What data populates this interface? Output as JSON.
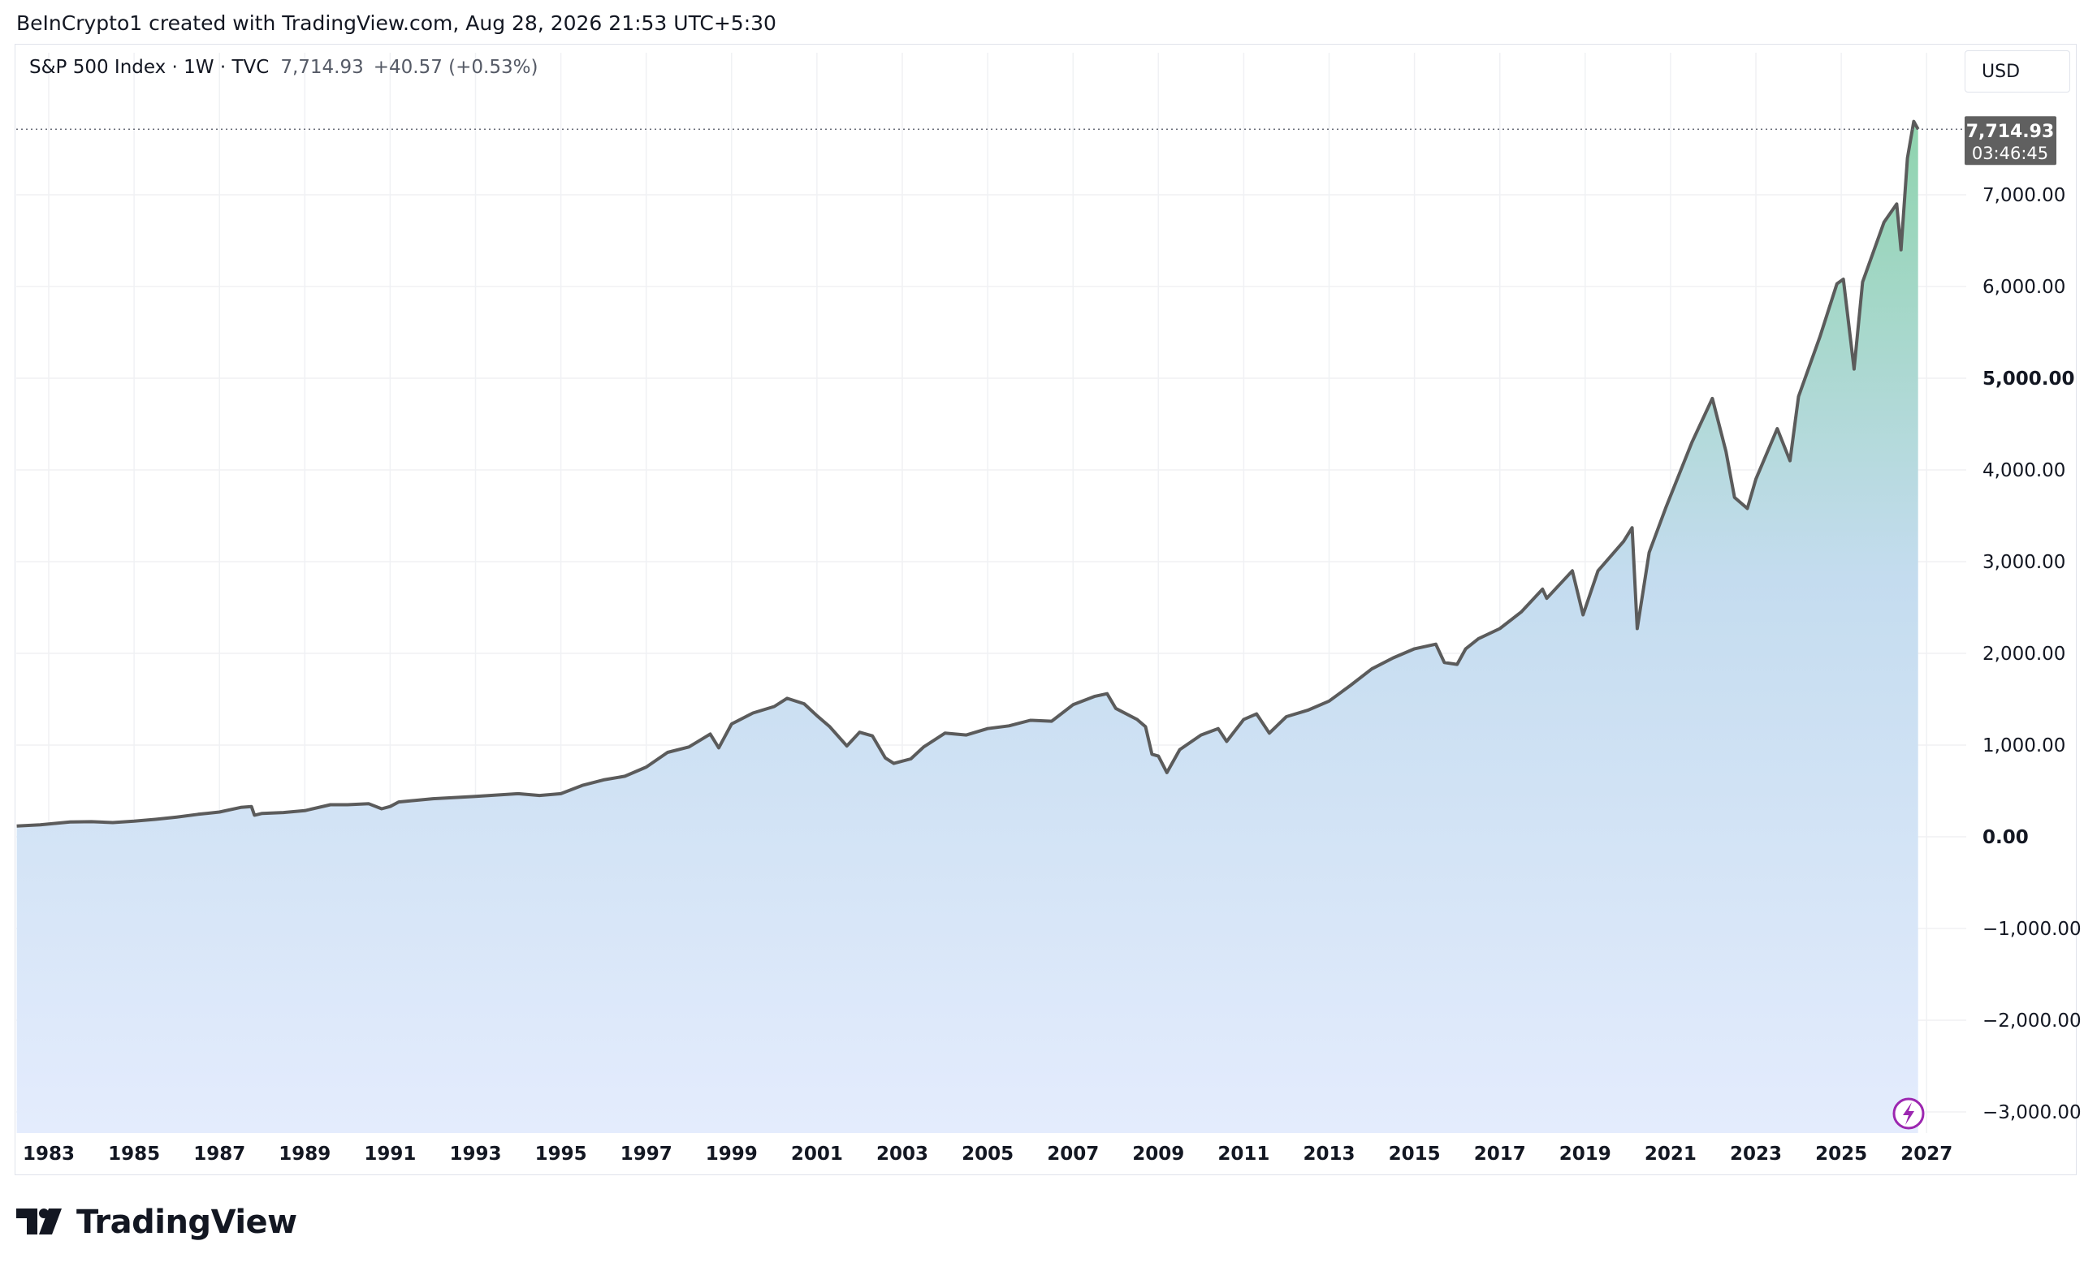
{
  "attribution": "BeInCrypto1 created with TradingView.com, Aug 28, 2026 21:53 UTC+5:30",
  "header": {
    "symbol": "S&P 500 Index · 1W · TVC",
    "price": "7,714.93",
    "change": "+40.57 (+0.53%)",
    "currency": "USD"
  },
  "price_tag": {
    "price": "7,714.93",
    "countdown": "03:46:45"
  },
  "brand": {
    "name": "TradingView"
  },
  "colors": {
    "line": "#5b5b5b",
    "fill_top_green": "#8fd4ae",
    "fill_mid": "#c4dcef",
    "fill_bottom_blue": "#e4ecfd",
    "grid": "#f0f1f4",
    "price_tag_bg": "#606060",
    "bolt": "#9c27b0"
  },
  "icons": {
    "flash": "lightning-bolt-icon",
    "logo": "tradingview-logo-icon"
  },
  "chart_data": {
    "type": "area",
    "y_ticks": [
      {
        "value": 7000,
        "label": "7,000.00",
        "bold": false
      },
      {
        "value": 6000,
        "label": "6,000.00",
        "bold": false
      },
      {
        "value": 5000,
        "label": "5,000.00",
        "bold": true
      },
      {
        "value": 4000,
        "label": "4,000.00",
        "bold": false
      },
      {
        "value": 3000,
        "label": "3,000.00",
        "bold": false
      },
      {
        "value": 2000,
        "label": "2,000.00",
        "bold": false
      },
      {
        "value": 1000,
        "label": "1,000.00",
        "bold": false
      },
      {
        "value": 0,
        "label": "0.00",
        "bold": true
      },
      {
        "value": -1000,
        "label": "−1,000.00",
        "bold": false
      },
      {
        "value": -2000,
        "label": "−2,000.00",
        "bold": false
      },
      {
        "value": -3000,
        "label": "−3,000.00",
        "bold": false
      }
    ],
    "x_ticks": [
      "1983",
      "1985",
      "1987",
      "1989",
      "1991",
      "1993",
      "1995",
      "1997",
      "1999",
      "2001",
      "2003",
      "2005",
      "2007",
      "2009",
      "2011",
      "2013",
      "2015",
      "2017",
      "2019",
      "2021",
      "2023",
      "2025",
      "2027"
    ],
    "x_range": [
      1982.25,
      2027.8
    ],
    "y_range": [
      -3300,
      8000
    ],
    "last_value": 7714.93,
    "series": [
      {
        "points": [
          [
            1982.25,
            118
          ],
          [
            1982.8,
            130
          ],
          [
            1983.5,
            162
          ],
          [
            1984.0,
            165
          ],
          [
            1984.5,
            155
          ],
          [
            1985.0,
            170
          ],
          [
            1985.5,
            190
          ],
          [
            1986.0,
            215
          ],
          [
            1986.5,
            245
          ],
          [
            1987.0,
            270
          ],
          [
            1987.5,
            320
          ],
          [
            1987.75,
            330
          ],
          [
            1987.82,
            235
          ],
          [
            1988.0,
            255
          ],
          [
            1988.5,
            265
          ],
          [
            1989.0,
            285
          ],
          [
            1989.6,
            350
          ],
          [
            1990.0,
            350
          ],
          [
            1990.5,
            360
          ],
          [
            1990.8,
            305
          ],
          [
            1991.0,
            330
          ],
          [
            1991.2,
            380
          ],
          [
            1992.0,
            415
          ],
          [
            1993.0,
            440
          ],
          [
            1994.0,
            470
          ],
          [
            1994.5,
            450
          ],
          [
            1995.0,
            470
          ],
          [
            1995.5,
            560
          ],
          [
            1996.0,
            620
          ],
          [
            1996.5,
            660
          ],
          [
            1997.0,
            760
          ],
          [
            1997.5,
            920
          ],
          [
            1998.0,
            980
          ],
          [
            1998.5,
            1120
          ],
          [
            1998.7,
            970
          ],
          [
            1999.0,
            1230
          ],
          [
            1999.5,
            1350
          ],
          [
            2000.0,
            1420
          ],
          [
            2000.3,
            1510
          ],
          [
            2000.7,
            1450
          ],
          [
            2001.0,
            1320
          ],
          [
            2001.3,
            1200
          ],
          [
            2001.7,
            990
          ],
          [
            2002.0,
            1140
          ],
          [
            2002.3,
            1100
          ],
          [
            2002.6,
            860
          ],
          [
            2002.8,
            800
          ],
          [
            2003.2,
            850
          ],
          [
            2003.5,
            980
          ],
          [
            2004.0,
            1130
          ],
          [
            2004.5,
            1110
          ],
          [
            2005.0,
            1180
          ],
          [
            2005.5,
            1210
          ],
          [
            2006.0,
            1270
          ],
          [
            2006.5,
            1260
          ],
          [
            2007.0,
            1440
          ],
          [
            2007.5,
            1530
          ],
          [
            2007.8,
            1560
          ],
          [
            2008.0,
            1400
          ],
          [
            2008.5,
            1280
          ],
          [
            2008.7,
            1200
          ],
          [
            2008.85,
            900
          ],
          [
            2009.0,
            880
          ],
          [
            2009.2,
            700
          ],
          [
            2009.5,
            950
          ],
          [
            2010.0,
            1110
          ],
          [
            2010.4,
            1180
          ],
          [
            2010.6,
            1040
          ],
          [
            2011.0,
            1280
          ],
          [
            2011.3,
            1340
          ],
          [
            2011.6,
            1130
          ],
          [
            2012.0,
            1310
          ],
          [
            2012.5,
            1380
          ],
          [
            2013.0,
            1480
          ],
          [
            2013.5,
            1650
          ],
          [
            2014.0,
            1830
          ],
          [
            2014.5,
            1950
          ],
          [
            2015.0,
            2050
          ],
          [
            2015.5,
            2100
          ],
          [
            2015.7,
            1900
          ],
          [
            2016.0,
            1880
          ],
          [
            2016.2,
            2050
          ],
          [
            2016.5,
            2160
          ],
          [
            2017.0,
            2270
          ],
          [
            2017.5,
            2450
          ],
          [
            2018.0,
            2700
          ],
          [
            2018.1,
            2600
          ],
          [
            2018.7,
            2900
          ],
          [
            2018.95,
            2420
          ],
          [
            2019.3,
            2900
          ],
          [
            2019.9,
            3220
          ],
          [
            2020.1,
            3370
          ],
          [
            2020.22,
            2270
          ],
          [
            2020.5,
            3100
          ],
          [
            2020.9,
            3600
          ],
          [
            2021.5,
            4300
          ],
          [
            2021.98,
            4780
          ],
          [
            2022.3,
            4200
          ],
          [
            2022.5,
            3700
          ],
          [
            2022.8,
            3580
          ],
          [
            2023.0,
            3900
          ],
          [
            2023.5,
            4450
          ],
          [
            2023.8,
            4100
          ],
          [
            2024.0,
            4800
          ],
          [
            2024.5,
            5450
          ],
          [
            2024.9,
            6030
          ],
          [
            2025.05,
            6080
          ],
          [
            2025.3,
            5100
          ],
          [
            2025.5,
            6050
          ],
          [
            2026.0,
            6700
          ],
          [
            2026.3,
            6900
          ],
          [
            2026.4,
            6400
          ],
          [
            2026.55,
            7400
          ],
          [
            2026.7,
            7800
          ],
          [
            2026.8,
            7714.93
          ]
        ]
      }
    ]
  }
}
